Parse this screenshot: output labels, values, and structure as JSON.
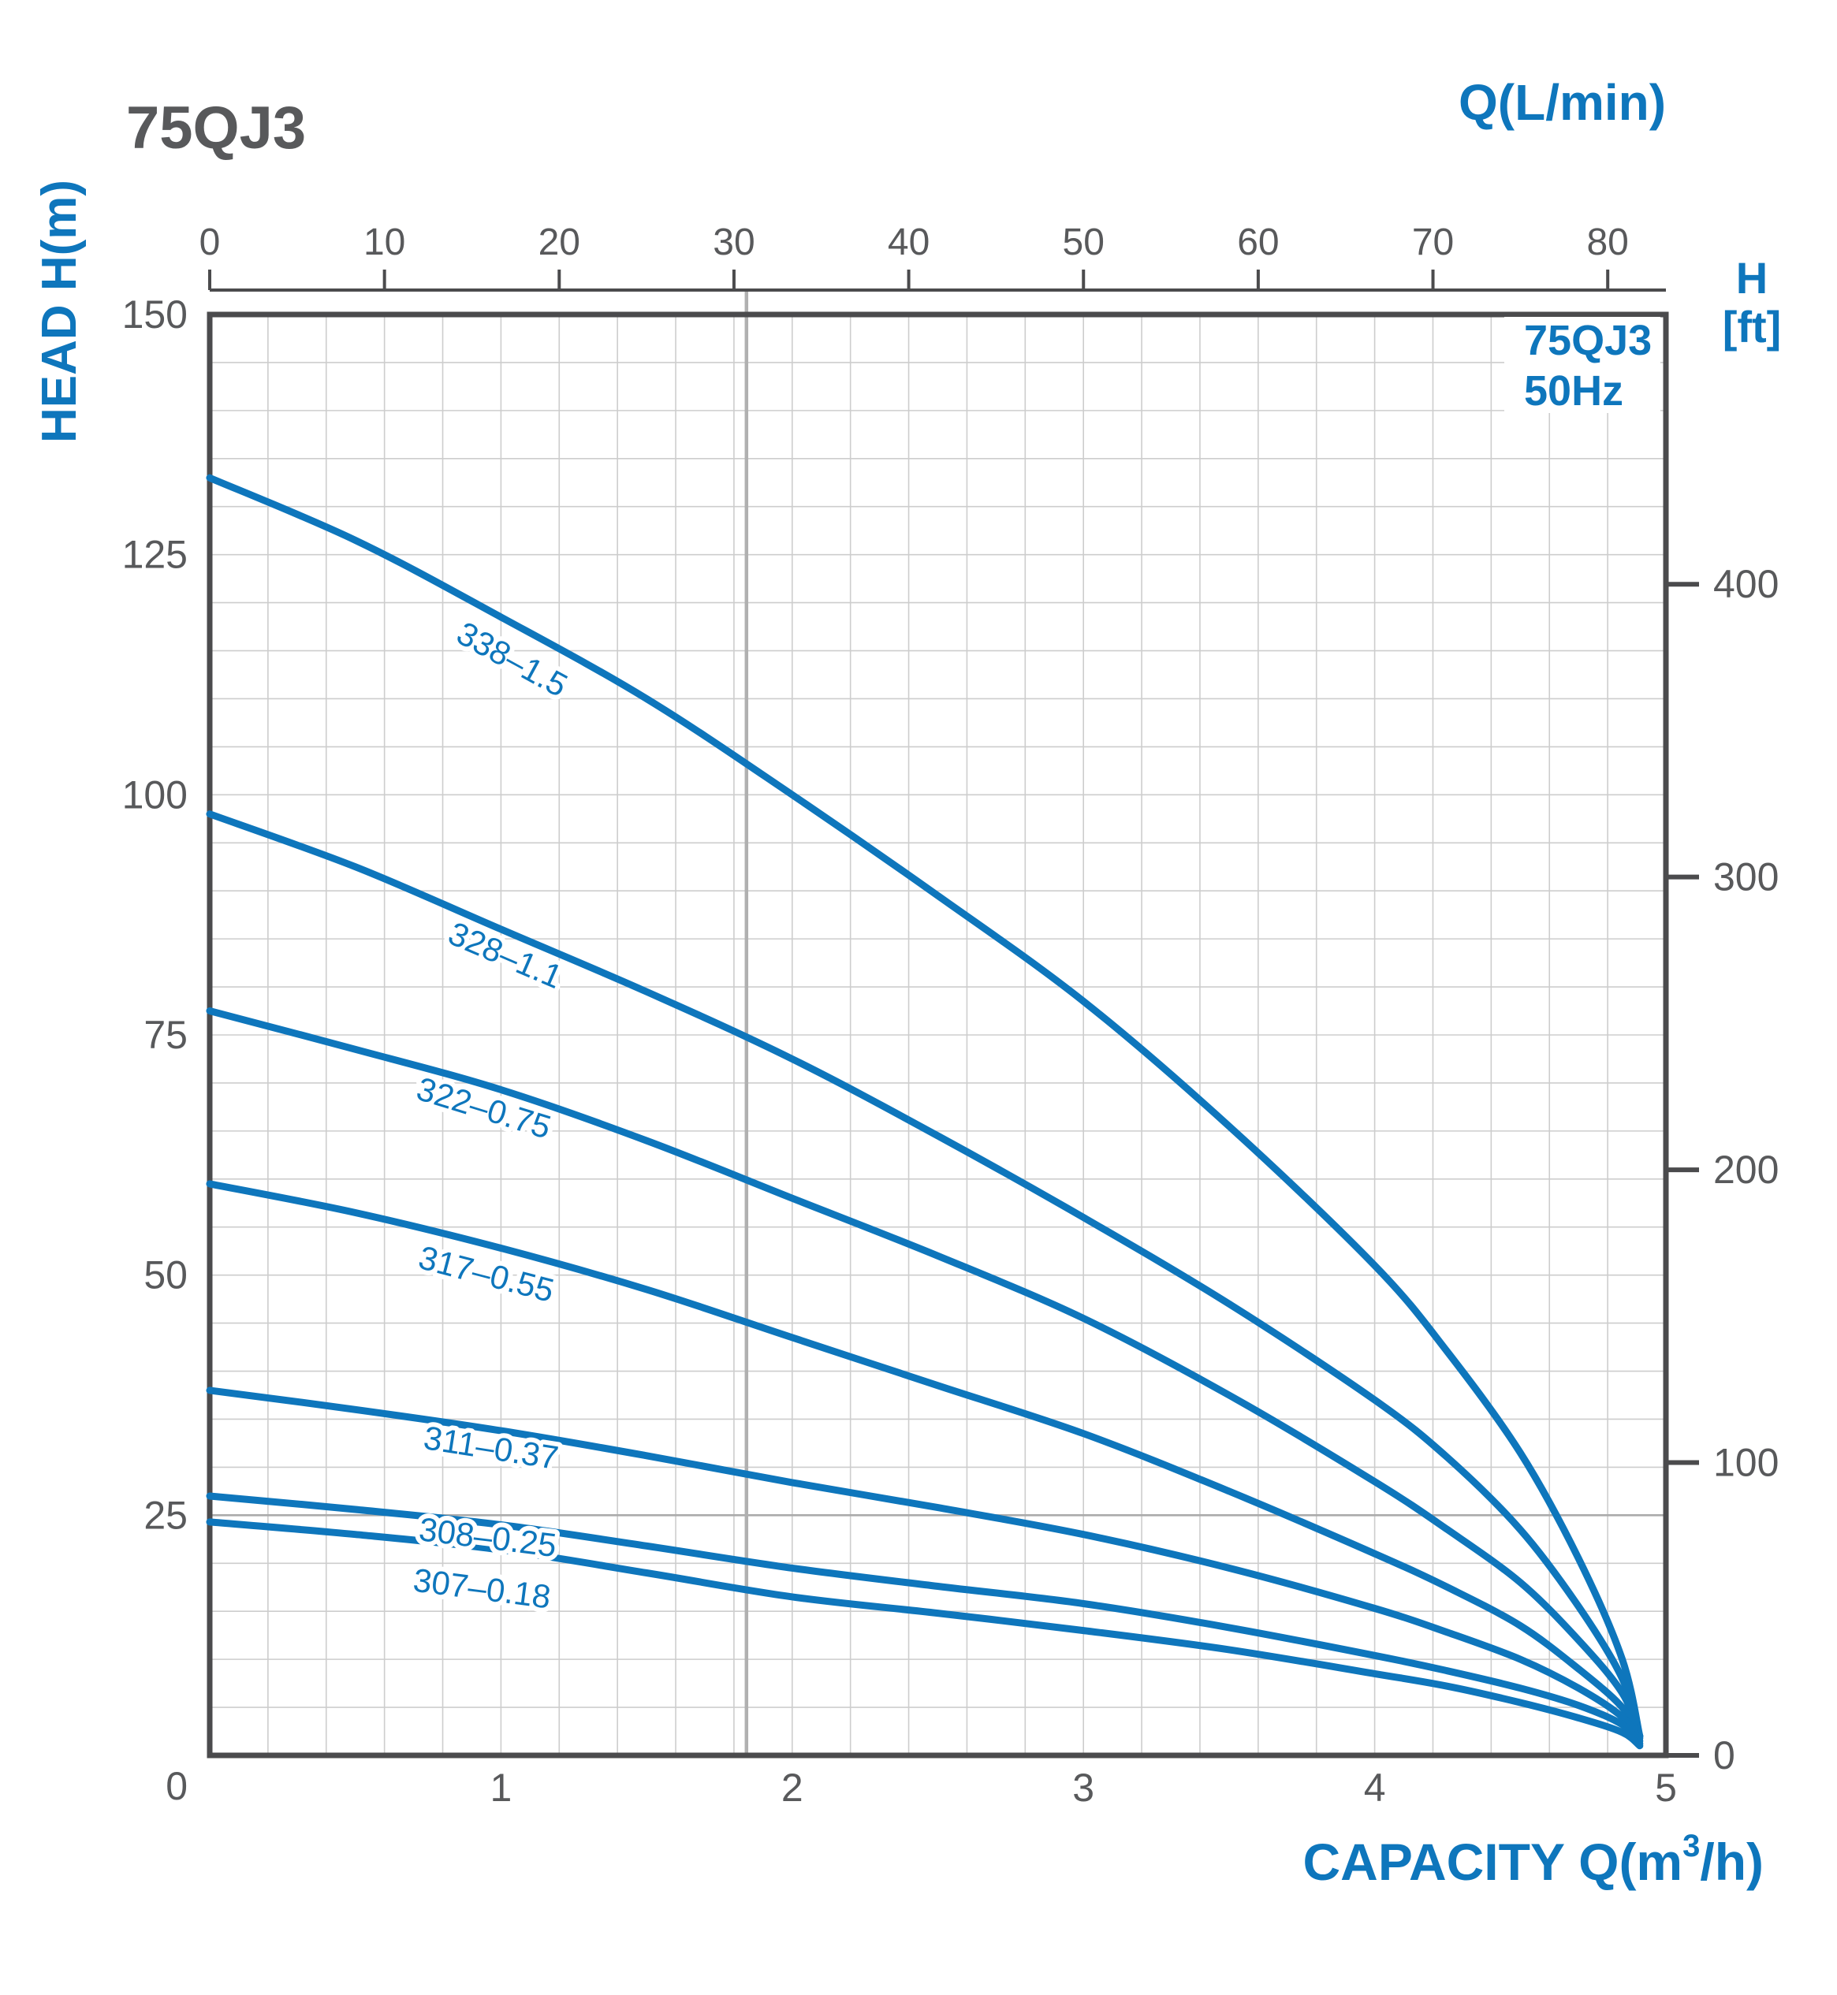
{
  "header": {
    "model_title": "75QJ3"
  },
  "chart_data": {
    "type": "line",
    "title": "75QJ3",
    "legend": {
      "line1": "75QJ3",
      "line2": "50Hz",
      "position": "top-right-inside"
    },
    "axes": {
      "top": {
        "label": "Q(L/min)",
        "unit": "L/min",
        "min": 0,
        "max": 83.33,
        "ticks": [
          0,
          10,
          20,
          30,
          40,
          50,
          60,
          70,
          80
        ]
      },
      "left": {
        "label": "HEAD H(m)",
        "unit": "m",
        "min": 0,
        "max": 150,
        "ticks": [
          150,
          125,
          100,
          75,
          50,
          25
        ],
        "corner_zero": "0",
        "minor_step": 5
      },
      "right": {
        "label_line1": "H",
        "label_line2": "[ft]",
        "unit": "ft",
        "ticks": [
          400,
          300,
          200,
          100,
          0
        ],
        "m_per_ft": 0.3048
      },
      "bottom": {
        "label_prefix": "CAPACITY Q(m",
        "label_sup": "3",
        "label_suffix": "/h)",
        "unit": "m3/h",
        "min": 0,
        "max": 5,
        "ticks": [
          1,
          2,
          3,
          4,
          5
        ],
        "minor_step": 0.2
      }
    },
    "reference_lines": {
      "vertical_q": 1.843,
      "horizontal_h": 25
    },
    "grid": {
      "minor_x_step": 0.2,
      "minor_y_step": 5,
      "visible": true
    },
    "series": [
      {
        "label": "338–1.5",
        "label_q": 1.02,
        "label_offset": 62,
        "points": [
          [
            0,
            133
          ],
          [
            0.5,
            126.5
          ],
          [
            1,
            118.5
          ],
          [
            1.5,
            110
          ],
          [
            2,
            100
          ],
          [
            2.5,
            89.5
          ],
          [
            3,
            78.5
          ],
          [
            3.5,
            65.5
          ],
          [
            4,
            51
          ],
          [
            4.25,
            42
          ],
          [
            4.5,
            31.5
          ],
          [
            4.7,
            20.5
          ],
          [
            4.85,
            10
          ],
          [
            4.91,
            2
          ]
        ]
      },
      {
        "label": "328–1.1",
        "label_q": 1.0,
        "label_offset": 46,
        "points": [
          [
            0,
            98
          ],
          [
            0.5,
            92.5
          ],
          [
            1,
            86
          ],
          [
            1.5,
            79.5
          ],
          [
            2,
            72.5
          ],
          [
            2.5,
            64.5
          ],
          [
            3,
            56
          ],
          [
            3.5,
            47
          ],
          [
            4,
            37
          ],
          [
            4.25,
            31
          ],
          [
            4.5,
            23.5
          ],
          [
            4.7,
            15.5
          ],
          [
            4.85,
            8
          ],
          [
            4.91,
            2
          ]
        ]
      },
      {
        "label": "322–0.75",
        "label_q": 0.93,
        "label_offset": 44,
        "points": [
          [
            0,
            77.5
          ],
          [
            0.5,
            73.5
          ],
          [
            1,
            69.3
          ],
          [
            1.5,
            64
          ],
          [
            2,
            58
          ],
          [
            2.5,
            52
          ],
          [
            3,
            45.5
          ],
          [
            3.5,
            37.5
          ],
          [
            4,
            28.5
          ],
          [
            4.25,
            23.5
          ],
          [
            4.5,
            18
          ],
          [
            4.7,
            12
          ],
          [
            4.85,
            6.5
          ],
          [
            4.91,
            2
          ]
        ]
      },
      {
        "label": "317–0.55",
        "label_q": 0.94,
        "label_offset": 52,
        "points": [
          [
            0,
            59.5
          ],
          [
            0.5,
            56.5
          ],
          [
            1,
            52.8
          ],
          [
            1.5,
            48.5
          ],
          [
            2,
            43.5
          ],
          [
            2.5,
            38.5
          ],
          [
            3,
            33.5
          ],
          [
            3.5,
            27.5
          ],
          [
            4,
            21
          ],
          [
            4.25,
            17.5
          ],
          [
            4.5,
            13.5
          ],
          [
            4.7,
            9
          ],
          [
            4.85,
            5
          ],
          [
            4.91,
            1.8
          ]
        ]
      },
      {
        "label": "311–0.37",
        "label_q": 0.96,
        "label_offset": 38,
        "points": [
          [
            0,
            38
          ],
          [
            0.5,
            36
          ],
          [
            1,
            33.8
          ],
          [
            1.5,
            31.2
          ],
          [
            2,
            28.4
          ],
          [
            2.5,
            25.8
          ],
          [
            3,
            23
          ],
          [
            3.5,
            19.5
          ],
          [
            4,
            15.3
          ],
          [
            4.25,
            12.8
          ],
          [
            4.5,
            10
          ],
          [
            4.7,
            7
          ],
          [
            4.85,
            4
          ],
          [
            4.91,
            1.5
          ]
        ]
      },
      {
        "label": "308–0.25",
        "label_q": 0.95,
        "label_offset": 32,
        "points": [
          [
            0,
            27
          ],
          [
            0.5,
            25.6
          ],
          [
            1,
            24
          ],
          [
            1.5,
            21.8
          ],
          [
            2,
            19.5
          ],
          [
            2.5,
            17.6
          ],
          [
            3,
            15.8
          ],
          [
            3.5,
            13.3
          ],
          [
            4,
            10.4
          ],
          [
            4.25,
            8.8
          ],
          [
            4.5,
            7
          ],
          [
            4.7,
            5.2
          ],
          [
            4.85,
            3.2
          ],
          [
            4.91,
            1.2
          ]
        ]
      },
      {
        "label": "307–0.18",
        "label_q": 0.93,
        "label_offset": 66,
        "points": [
          [
            0,
            24.3
          ],
          [
            0.5,
            23
          ],
          [
            1,
            21.4
          ],
          [
            1.5,
            19
          ],
          [
            2,
            16.5
          ],
          [
            2.5,
            14.8
          ],
          [
            3,
            13
          ],
          [
            3.5,
            11
          ],
          [
            4,
            8.5
          ],
          [
            4.25,
            7.2
          ],
          [
            4.5,
            5.5
          ],
          [
            4.7,
            3.9
          ],
          [
            4.85,
            2.4
          ],
          [
            4.91,
            1
          ]
        ]
      }
    ],
    "colors": {
      "curve": "#0e76bc",
      "text_blue": "#0e76bc",
      "text_gray": "#58595b",
      "axis": "#4b4b4d",
      "grid": "#cdcdcd",
      "ref_line_v": "#b0b0b0",
      "ref_line_h": "#ababab"
    }
  }
}
